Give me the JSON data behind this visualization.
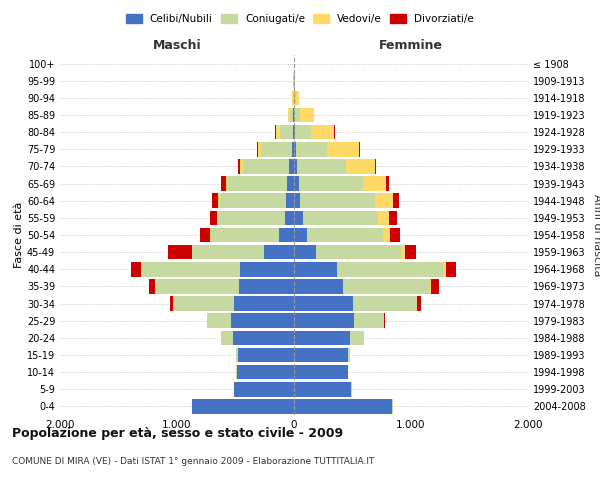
{
  "age_groups": [
    "0-4",
    "5-9",
    "10-14",
    "15-19",
    "20-24",
    "25-29",
    "30-34",
    "35-39",
    "40-44",
    "45-49",
    "50-54",
    "55-59",
    "60-64",
    "65-69",
    "70-74",
    "75-79",
    "80-84",
    "85-89",
    "90-94",
    "95-99",
    "100+"
  ],
  "birth_years": [
    "2004-2008",
    "1999-2003",
    "1994-1998",
    "1989-1993",
    "1984-1988",
    "1979-1983",
    "1974-1978",
    "1969-1973",
    "1964-1968",
    "1959-1963",
    "1954-1958",
    "1949-1953",
    "1944-1948",
    "1939-1943",
    "1934-1938",
    "1929-1933",
    "1924-1928",
    "1919-1923",
    "1914-1918",
    "1909-1913",
    "≤ 1908"
  ],
  "males": {
    "celibi": [
      870,
      510,
      490,
      480,
      520,
      540,
      510,
      470,
      460,
      260,
      130,
      80,
      65,
      60,
      40,
      20,
      10,
      5,
      3,
      2,
      0
    ],
    "coniugati": [
      5,
      2,
      5,
      20,
      100,
      200,
      520,
      710,
      840,
      610,
      580,
      570,
      570,
      510,
      400,
      260,
      110,
      25,
      8,
      3,
      0
    ],
    "vedovi": [
      0,
      0,
      0,
      0,
      0,
      0,
      2,
      5,
      5,
      5,
      10,
      10,
      15,
      15,
      20,
      30,
      35,
      25,
      5,
      0,
      0
    ],
    "divorziati": [
      0,
      0,
      0,
      0,
      2,
      5,
      30,
      55,
      90,
      200,
      80,
      60,
      50,
      35,
      15,
      5,
      5,
      0,
      0,
      0,
      0
    ]
  },
  "females": {
    "nubili": [
      840,
      490,
      460,
      460,
      480,
      510,
      500,
      420,
      370,
      185,
      110,
      80,
      55,
      40,
      22,
      15,
      8,
      4,
      3,
      2,
      0
    ],
    "coniugate": [
      5,
      2,
      5,
      20,
      115,
      260,
      550,
      740,
      900,
      730,
      650,
      640,
      640,
      550,
      420,
      270,
      140,
      45,
      12,
      3,
      0
    ],
    "vedove": [
      0,
      0,
      0,
      0,
      0,
      2,
      5,
      15,
      25,
      30,
      60,
      90,
      150,
      200,
      250,
      270,
      195,
      120,
      25,
      4,
      0
    ],
    "divorziate": [
      0,
      0,
      0,
      0,
      2,
      5,
      30,
      65,
      90,
      100,
      85,
      70,
      55,
      25,
      10,
      5,
      5,
      0,
      0,
      0,
      0
    ]
  },
  "colors": {
    "celibi": "#4472c4",
    "coniugati": "#c5d9a0",
    "vedovi": "#ffd966",
    "divorziati": "#cc0000"
  },
  "xlim": 2000,
  "title": "Popolazione per età, sesso e stato civile - 2009",
  "subtitle": "COMUNE DI MIRA (VE) - Dati ISTAT 1° gennaio 2009 - Elaborazione TUTTITALIA.IT",
  "ylabel_left": "Fasce di età",
  "ylabel_right": "Anni di nascita",
  "xlabel_maschi": "Maschi",
  "xlabel_femmine": "Femmine",
  "legend_labels": [
    "Celibi/Nubili",
    "Coniugati/e",
    "Vedovi/e",
    "Divorziati/e"
  ]
}
